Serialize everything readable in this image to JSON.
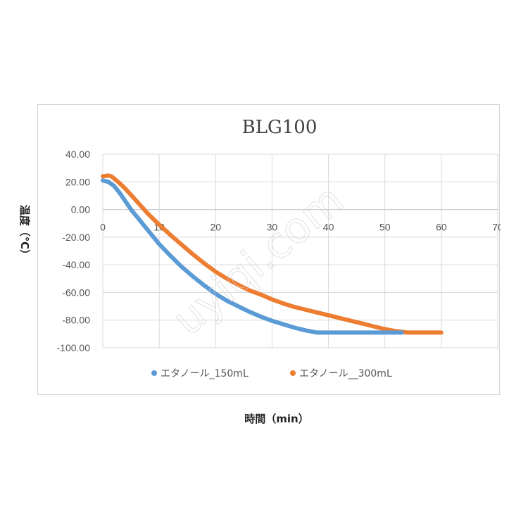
{
  "chart_data": {
    "type": "line",
    "title": "BLG100",
    "xlabel": "時間（min）",
    "ylabel": "温度（℃）",
    "xlim": [
      0,
      70
    ],
    "ylim": [
      -100,
      40
    ],
    "xticks": [
      0,
      10,
      20,
      30,
      40,
      50,
      60,
      70
    ],
    "yticks": [
      40,
      20,
      0,
      -20,
      -40,
      -60,
      -80,
      -100
    ],
    "ytick_labels": [
      "40.00",
      "20.00",
      "0.00",
      "-20.00",
      "-40.00",
      "-60.00",
      "-80.00",
      "-100.00"
    ],
    "grid": true,
    "legend_position": "bottom",
    "series": [
      {
        "name": "エタノール_150mL",
        "color": "#5b9bd5",
        "x": [
          0,
          1,
          2,
          3,
          4,
          5,
          6,
          8,
          10,
          12,
          14,
          16,
          18,
          20,
          22,
          24,
          26,
          28,
          30,
          32,
          34,
          36,
          38,
          40,
          45,
          50,
          53
        ],
        "y": [
          21,
          20,
          17,
          12,
          6,
          0,
          -5,
          -15,
          -25,
          -33.5,
          -41.5,
          -48.5,
          -55,
          -61,
          -66,
          -70,
          -74,
          -77.5,
          -80.5,
          -83,
          -85.5,
          -87.5,
          -89,
          -89,
          -89,
          -89,
          -89
        ]
      },
      {
        "name": "エタノール__300mL",
        "color": "#ed7d31",
        "x": [
          0,
          1,
          1.5,
          2,
          3,
          4,
          6,
          8,
          10,
          12,
          14,
          16,
          18,
          20,
          22,
          24,
          26,
          28,
          30,
          32,
          34,
          36,
          38,
          40,
          42,
          44,
          46,
          48,
          50,
          52,
          54,
          56,
          58,
          60
        ],
        "y": [
          24,
          24.5,
          24,
          22.5,
          19,
          15,
          6,
          -3,
          -11,
          -18.5,
          -25.5,
          -32.5,
          -39,
          -45,
          -50,
          -54.5,
          -58.5,
          -61.5,
          -65,
          -68,
          -70.5,
          -72.5,
          -74.5,
          -76.5,
          -78.5,
          -80.5,
          -82.5,
          -84.5,
          -86.5,
          -88,
          -89,
          -89,
          -89,
          -89
        ]
      }
    ]
  },
  "watermark": "uyiqi.com"
}
